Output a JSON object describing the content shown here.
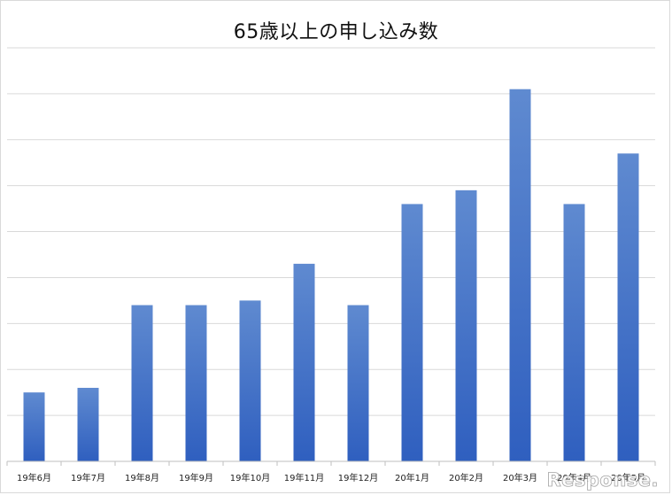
{
  "chart_data": {
    "type": "bar",
    "title": "65歳以上の申し込み数",
    "categories": [
      "19年6月",
      "19年7月",
      "19年8月",
      "19年9月",
      "19年10月",
      "19年11月",
      "19年12月",
      "20年1月",
      "20年2月",
      "20年3月",
      "20年4月",
      "20年5月"
    ],
    "values": [
      1.5,
      1.6,
      3.4,
      3.4,
      3.5,
      4.3,
      3.4,
      5.6,
      5.9,
      8.1,
      5.6,
      6.7
    ],
    "ylim": [
      0,
      9
    ],
    "yticks_labeled": false,
    "grid": true,
    "legend": "none",
    "colors": {
      "bar_top": "#5f8ad0",
      "bar_bottom": "#2f5fbf",
      "grid": "#d9d9d9",
      "axis": "#bfbfbf"
    }
  },
  "watermark": {
    "text": "Response."
  }
}
